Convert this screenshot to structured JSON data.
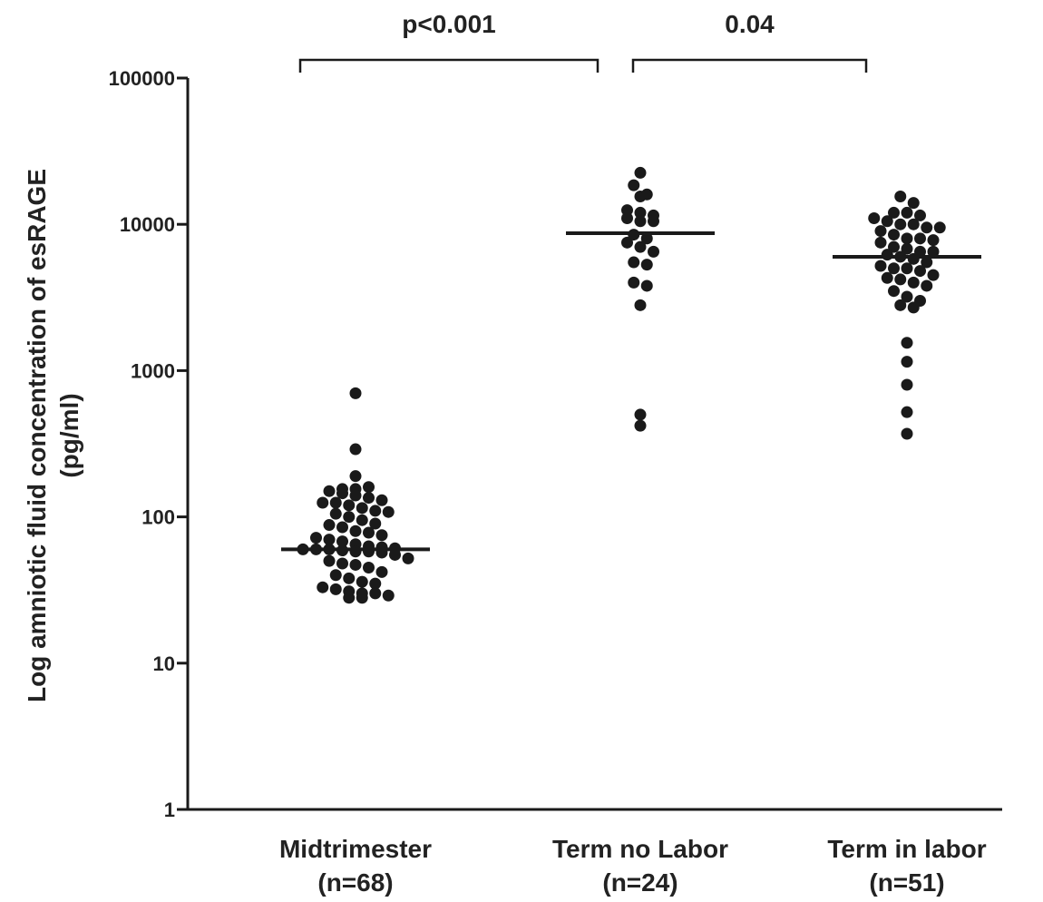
{
  "chart_data": {
    "type": "scatter",
    "title": "",
    "ylabel": "Log amniotic fluid concentration of esRAGE",
    "ylabel_unit": "(pg/ml)",
    "xlabel": "",
    "y_scale": "log",
    "ylim": [
      1,
      100000
    ],
    "y_ticks": [
      "1",
      "10",
      "100",
      "1000",
      "10000",
      "100000"
    ],
    "grid": false,
    "legend": "none",
    "point_color": "#1a1a1a",
    "groups": [
      {
        "label": "Midtrimester",
        "n_label": "(n=68)",
        "median": 60,
        "values": [
          700,
          290,
          190,
          155,
          150,
          145,
          140,
          155,
          160,
          135,
          125,
          125,
          120,
          115,
          130,
          110,
          108,
          105,
          100,
          95,
          90,
          88,
          85,
          80,
          78,
          75,
          72,
          70,
          68,
          65,
          63,
          62,
          61,
          60,
          60,
          60,
          59,
          58,
          58,
          57,
          55,
          52,
          50,
          48,
          47,
          45,
          42,
          40,
          38,
          36,
          35,
          33,
          32,
          31,
          30,
          30,
          29,
          28,
          28
        ]
      },
      {
        "label": "Term no Labor",
        "n_label": "(n=24)",
        "median": 8700,
        "values": [
          22500,
          18500,
          16000,
          15500,
          12500,
          12000,
          11500,
          11000,
          10500,
          10500,
          8500,
          8000,
          7500,
          7000,
          6500,
          5500,
          5300,
          4000,
          3800,
          2800,
          500,
          420
        ]
      },
      {
        "label": "Term in labor",
        "n_label": "(n=51)",
        "median": 6000,
        "values": [
          15500,
          14000,
          12000,
          12000,
          11500,
          11000,
          10500,
          10000,
          10000,
          9500,
          9500,
          9000,
          8500,
          8000,
          8000,
          7800,
          7500,
          7000,
          6800,
          6500,
          6500,
          6200,
          6000,
          5800,
          5500,
          5200,
          5000,
          5000,
          4800,
          4500,
          4300,
          4200,
          4000,
          3800,
          3500,
          3200,
          3000,
          2800,
          2700,
          1550,
          1150,
          800,
          520,
          370
        ]
      }
    ],
    "comparisons": [
      {
        "from": 0,
        "to": 1,
        "label": "p<0.001"
      },
      {
        "from": 1,
        "to": 2,
        "label": "0.04"
      }
    ]
  }
}
